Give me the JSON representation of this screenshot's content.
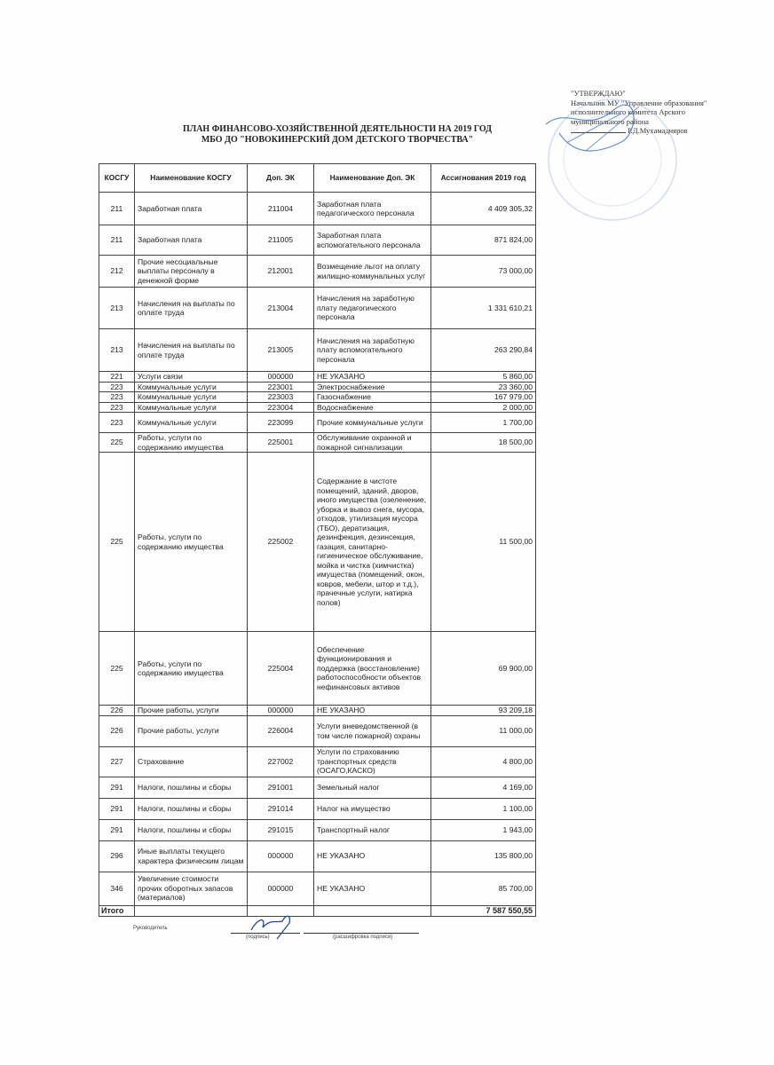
{
  "approval": {
    "heading": "\"УТВЕРЖДАЮ\"",
    "line1": "Начальник МУ \"Управление образования\"",
    "line2": "исполнительного комитета Арского",
    "line3": "муниципального района",
    "signer": "Р.Д.Мухамадияров"
  },
  "title": {
    "line1": "ПЛАН  ФИНАНСОВО-ХОЗЯЙСТВЕННОЙ ДЕЯТЕЛЬНОСТИ НА 2019 ГОД",
    "line2": "МБО ДО \"НОВОКИНЕРСКИЙ ДОМ ДЕТСКОГО ТВОРЧЕСТВА\""
  },
  "table": {
    "headers": [
      "КОСГУ",
      "Наименование КОСГУ",
      "Доп. ЭК",
      "Наименование Доп. ЭК",
      "Ассигнования 2019 год"
    ],
    "rows": [
      [
        "211",
        "Заработная плата",
        "211004",
        "Заработная плата педагогического персонала",
        "4 409 305,32"
      ],
      [
        "211",
        "Заработная плата",
        "211005",
        "Заработная плата вспомогательного персонала",
        "871 824,00"
      ],
      [
        "212",
        "Прочие несоциальные выплаты персоналу в денежной форме",
        "212001",
        "Возмещение льгот на оплату жилищно-коммунальных услуг",
        "73 000,00"
      ],
      [
        "213",
        "Начисления на выплаты по оплате труда",
        "213004",
        "Начисления на заработную плату педагогического персонала",
        "1 331 610,21"
      ],
      [
        "213",
        "Начисления на выплаты по оплате труда",
        "213005",
        "Начисления на заработную плату вспомогательного персонала",
        "263 290,84"
      ],
      [
        "221",
        "Услуги связи",
        "000000",
        "НЕ УКАЗАНО",
        "5 860,00"
      ],
      [
        "223",
        "Коммунальные услуги",
        "223001",
        "Электроснабжение",
        "23 360,00"
      ],
      [
        "223",
        "Коммунальные услуги",
        "223003",
        "Газоснабжение",
        "167 979,00"
      ],
      [
        "223",
        "Коммунальные услуги",
        "223004",
        "Водоснабжение",
        "2 000,00"
      ],
      [
        "223",
        "Коммунальные услуги",
        "223099",
        "Прочие коммунальные услуги",
        "1 700,00"
      ],
      [
        "225",
        "Работы, услуги по содержанию имущества",
        "225001",
        "Обслуживание охранной и пожарной сигнализации",
        "18 500,00"
      ],
      [
        "225",
        "Работы, услуги по содержанию имущества",
        "225002",
        "Содержание в чистоте помещений, зданий, дворов, иного имущества (озеленение, уборка и вывоз снега, мусора, отходов, утилизация мусора (ТБО), дератизация, дезинфекция, дезинсекция, газация, санитарно-гигиеническое обслуживание, мойка и чистка (химчистка) имущества (помещений, окон, ковров, мебели, штор и т.д.), прачечные услуги, натирка полов)",
        "11 500,00"
      ],
      [
        "225",
        "Работы, услуги по содержанию имущества",
        "225004",
        "Обеспечение функционирования и поддержка (восстановление) работоспособности объектов нефинансовых активов",
        "69 900,00"
      ],
      [
        "226",
        "Прочие работы, услуги",
        "000000",
        "НЕ УКАЗАНО",
        "93 209,18"
      ],
      [
        "226",
        "Прочие работы, услуги",
        "226004",
        "Услуги вневедомственной (в том числе пожарной) охраны",
        "11 000,00"
      ],
      [
        "227",
        "Страхование",
        "227002",
        "Услуги по страхованию транспортных средств (ОСАГО,КАСКО)",
        "4 800,00"
      ],
      [
        "291",
        "Налоги, пошлины и сборы",
        "291001",
        "Земельный налог",
        "4 169,00"
      ],
      [
        "291",
        "Налоги, пошлины и сборы",
        "291014",
        "Налог на имущество",
        "1 100,00"
      ],
      [
        "291",
        "Налоги, пошлины и сборы",
        "291015",
        "Транспортный налог",
        "1 943,00"
      ],
      [
        "296",
        "Иные выплаты текущего характера физическим лицам",
        "000000",
        "НЕ УКАЗАНО",
        "135 800,00"
      ],
      [
        "346",
        "Увеличение стоимости прочих оборотных запасов (материалов)",
        "000000",
        "НЕ УКАЗАНО",
        "85 700,00"
      ]
    ],
    "total_label": "Итого",
    "total_value": "7 587 550,55"
  },
  "footer": {
    "role": "Руководитель",
    "signature_caption": "(подпись)",
    "decoding_caption": "(расшифровка подписи)"
  },
  "colors": {
    "ink": "#222222",
    "stamp": "#3a6fd0"
  }
}
